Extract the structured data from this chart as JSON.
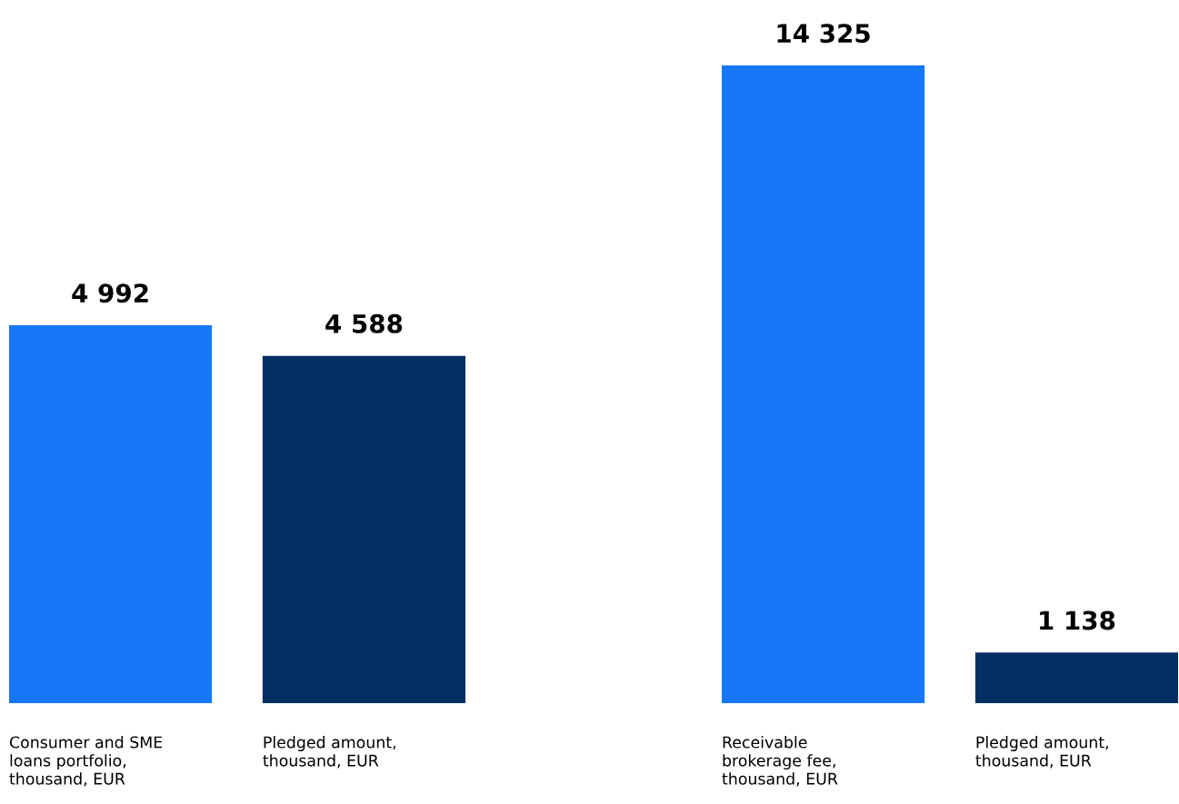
{
  "chart_data": [
    {
      "type": "bar",
      "categories": [
        "Consumer and SME\nloans portfolio,\nthousand, EUR",
        "Pledged amount,\nthousand, EUR"
      ],
      "values": [
        4992,
        4588
      ],
      "colors": [
        "#1777fa",
        "#032f63"
      ],
      "data_labels": true,
      "value_labels": [
        "4 992",
        "4 588"
      ]
    },
    {
      "type": "bar",
      "categories": [
        "Receivable\nbrokerage fee,\nthousand, EUR",
        "Pledged amount,\nthousand, EUR"
      ],
      "values": [
        14325,
        1138
      ],
      "colors": [
        "#1777fa",
        "#032f63"
      ],
      "data_labels": true,
      "value_labels": [
        "14 325",
        "1 138"
      ]
    }
  ]
}
